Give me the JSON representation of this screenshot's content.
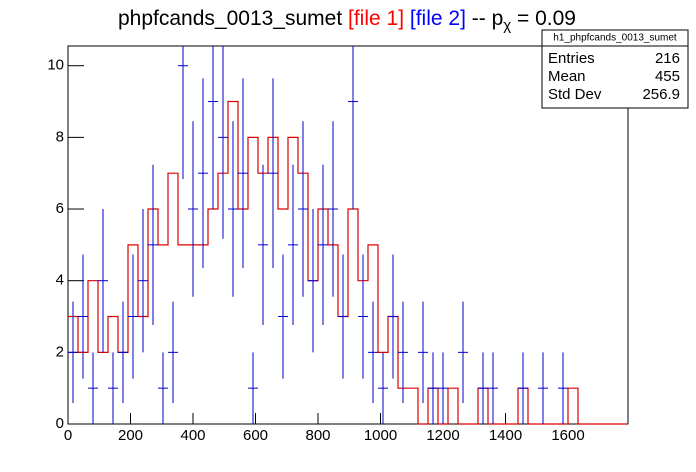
{
  "chart_data": {
    "type": "histogram",
    "title": {
      "main": "phpfcands_0013_sumet",
      "file1": "[file 1]",
      "file2": "[file 2]",
      "sep": "-- p",
      "sub": "χ",
      "rest": "= 0.09"
    },
    "bins": [
      0,
      32,
      64,
      96,
      128,
      160,
      192,
      224,
      256,
      288,
      320,
      352,
      384,
      416,
      448,
      480,
      512,
      544,
      576,
      608,
      640,
      672,
      704,
      736,
      768,
      800,
      832,
      864,
      896,
      928,
      960,
      992,
      1024,
      1056,
      1088,
      1120,
      1152,
      1184,
      1216,
      1248,
      1280,
      1312,
      1344,
      1376,
      1408,
      1440,
      1472,
      1504,
      1536,
      1568,
      1600,
      1632,
      1664,
      1696,
      1728,
      1760,
      1792
    ],
    "series": [
      {
        "name": "[file 1]",
        "color": "#dd0000",
        "style": "step",
        "values": [
          3,
          2,
          4,
          2,
          3,
          2,
          5,
          3,
          6,
          5,
          7,
          5,
          5,
          5,
          6,
          7,
          9,
          6,
          8,
          7,
          8,
          6,
          8,
          7,
          4,
          6,
          5,
          3,
          6,
          4,
          5,
          2,
          3,
          1,
          1,
          0,
          1,
          0,
          1,
          0,
          0,
          1,
          0,
          0,
          0,
          1,
          0,
          0,
          0,
          0,
          1,
          0,
          0,
          0,
          0,
          0
        ]
      },
      {
        "name": "[file 2]",
        "color": "#0000cc",
        "style": "errorbar",
        "values": [
          2,
          3,
          1,
          4,
          1,
          2,
          3,
          4,
          5,
          1,
          2,
          10,
          6,
          7,
          9,
          8,
          6,
          7,
          1,
          5,
          7,
          3,
          5,
          6,
          4,
          5,
          6,
          3,
          9,
          3,
          2,
          1,
          3,
          2,
          0,
          2,
          1,
          1,
          0,
          2,
          0,
          1,
          1,
          0,
          0,
          1,
          0,
          1,
          0,
          1,
          0,
          0,
          0,
          0,
          0,
          0
        ]
      }
    ],
    "xlim": [
      0,
      1792
    ],
    "ylim": [
      0,
      10.55
    ],
    "xticks": [
      0,
      200,
      400,
      600,
      800,
      1000,
      1200,
      1400,
      1600
    ],
    "yticks": [
      0,
      2,
      4,
      6,
      8,
      10
    ],
    "stats": {
      "name": "h1_phpfcands_0013_sumet",
      "rows": [
        [
          "Entries",
          216
        ],
        [
          "Mean",
          455
        ],
        [
          "Std Dev",
          256.9
        ]
      ]
    }
  }
}
